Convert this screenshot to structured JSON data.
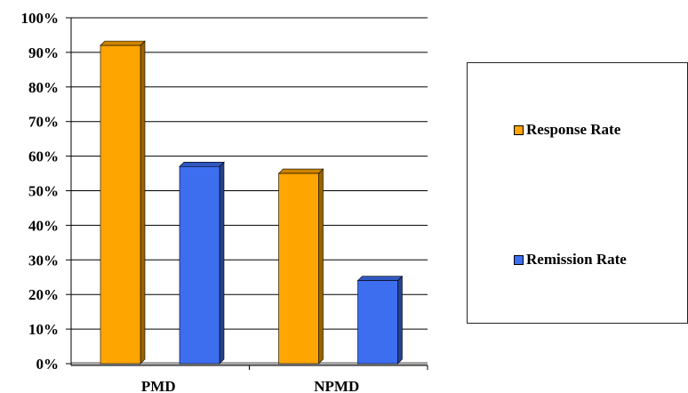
{
  "chart_data": {
    "type": "bar",
    "categories": [
      "PMD",
      "NPMD"
    ],
    "series": [
      {
        "name": "Response Rate",
        "values": [
          92,
          55
        ],
        "color": "#FFA500"
      },
      {
        "name": "Remission Rate",
        "values": [
          57,
          24
        ],
        "color": "#3D6EF0"
      }
    ],
    "y_ticks": [
      "0%",
      "10%",
      "20%",
      "30%",
      "40%",
      "50%",
      "60%",
      "70%",
      "80%",
      "90%",
      "100%"
    ],
    "ylim": [
      0,
      100
    ],
    "grid": true,
    "legend_position": "right",
    "title": "",
    "xlabel": "",
    "ylabel": ""
  }
}
